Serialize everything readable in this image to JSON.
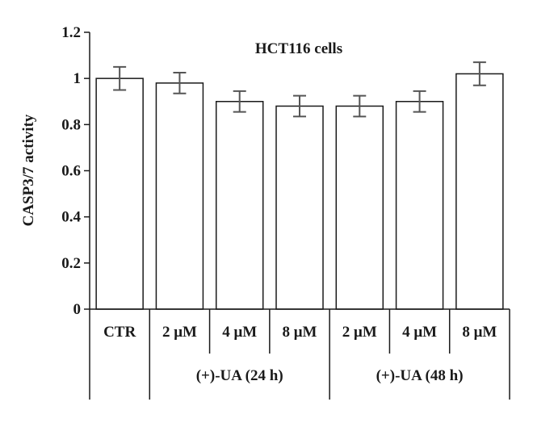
{
  "chart_data": {
    "type": "bar",
    "title": "HCT116 cells",
    "ylabel": "CASP3/7 activity",
    "xlabel": "",
    "ylim": [
      0,
      1.2
    ],
    "yticks": [
      "0",
      "0.2",
      "0.4",
      "0.6",
      "0.8",
      "1",
      "1.2"
    ],
    "categories": [
      "CTR",
      "2 μM",
      "4 μM",
      "8 μM",
      "2 μM",
      "4 μM",
      "8 μM"
    ],
    "values": [
      1.0,
      0.98,
      0.9,
      0.88,
      0.88,
      0.9,
      1.02
    ],
    "errors": [
      0.05,
      0.045,
      0.045,
      0.045,
      0.045,
      0.045,
      0.05
    ],
    "groups": [
      {
        "label": "(+)-UA (24 h)",
        "start": 1,
        "end": 3
      },
      {
        "label": "(+)-UA (48 h)",
        "start": 4,
        "end": 6
      }
    ],
    "bar_color": "#ffffff",
    "error_color": "#555555",
    "grid": false
  }
}
